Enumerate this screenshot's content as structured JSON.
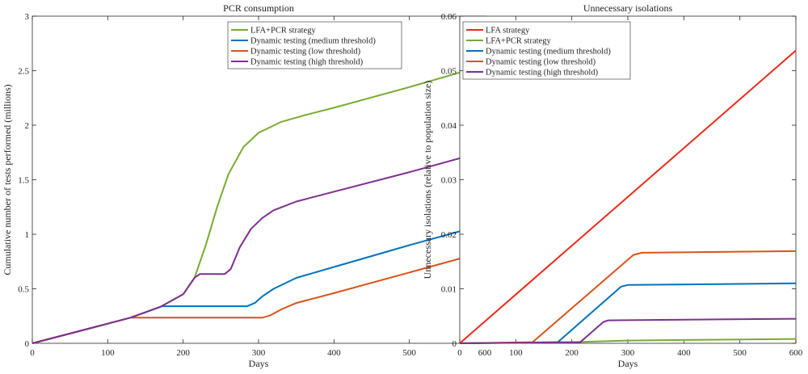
{
  "chart_data": [
    {
      "type": "line",
      "title": "PCR consumption",
      "xlabel": "Days",
      "ylabel": "Cumulative number of tests performed (millions)",
      "xlim": [
        0,
        600
      ],
      "ylim": [
        0,
        3
      ],
      "xticks": [
        0,
        100,
        200,
        300,
        400,
        500,
        600
      ],
      "yticks": [
        0,
        0.5,
        1,
        1.5,
        2,
        2.5,
        3
      ],
      "ytick_labels": [
        "0",
        "0.5",
        "1",
        "1.5",
        "2",
        "2.5",
        "3"
      ],
      "legend_position": "top-right",
      "series": [
        {
          "name": "LFA+PCR strategy",
          "color": "#77ac30",
          "x": [
            0,
            50,
            100,
            130,
            170,
            200,
            215,
            230,
            245,
            260,
            280,
            300,
            330,
            360,
            400,
            500,
            600
          ],
          "y": [
            0,
            0.09,
            0.18,
            0.235,
            0.335,
            0.45,
            0.6,
            0.9,
            1.25,
            1.55,
            1.8,
            1.93,
            2.03,
            2.09,
            2.16,
            2.35,
            2.55
          ]
        },
        {
          "name": "Dynamic testing (medium threshold)",
          "color": "#0072bd",
          "x": [
            0,
            50,
            100,
            130,
            172,
            285,
            295,
            305,
            320,
            350,
            400,
            500,
            600
          ],
          "y": [
            0,
            0.09,
            0.18,
            0.235,
            0.34,
            0.34,
            0.37,
            0.43,
            0.5,
            0.6,
            0.7,
            0.9,
            1.09
          ]
        },
        {
          "name": "Dynamic testing (low threshold)",
          "color": "#d95319",
          "x": [
            0,
            50,
            100,
            130,
            305,
            315,
            330,
            350,
            400,
            500,
            600
          ],
          "y": [
            0,
            0.09,
            0.18,
            0.235,
            0.235,
            0.255,
            0.31,
            0.37,
            0.46,
            0.65,
            0.84
          ]
        },
        {
          "name": "Dynamic testing (high threshold)",
          "color": "#7e2f8e",
          "x": [
            0,
            50,
            100,
            130,
            170,
            200,
            215,
            222,
            255,
            263,
            275,
            290,
            305,
            320,
            350,
            400,
            500,
            600
          ],
          "y": [
            0,
            0.09,
            0.18,
            0.235,
            0.335,
            0.45,
            0.6,
            0.635,
            0.635,
            0.68,
            0.88,
            1.05,
            1.15,
            1.22,
            1.3,
            1.39,
            1.57,
            1.76
          ]
        }
      ]
    },
    {
      "type": "line",
      "title": "Unnecessary isolations",
      "xlabel": "Days",
      "ylabel": "Unnecessary isolations (relative to population size)",
      "xlim": [
        0,
        600
      ],
      "ylim": [
        0,
        0.06
      ],
      "xticks": [
        0,
        100,
        200,
        300,
        400,
        500,
        600
      ],
      "yticks": [
        0,
        0.01,
        0.02,
        0.03,
        0.04,
        0.05,
        0.06
      ],
      "ytick_labels": [
        "0",
        "0.01",
        "0.02",
        "0.03",
        "0.04",
        "0.05",
        "0.06"
      ],
      "legend_position": "top-left",
      "series": [
        {
          "name": "LFA strategy",
          "color": "#ee2a1b",
          "x": [
            0,
            600
          ],
          "y": [
            0,
            0.0537
          ]
        },
        {
          "name": "LFA+PCR strategy",
          "color": "#77ac30",
          "x": [
            0,
            100,
            200,
            300,
            400,
            600
          ],
          "y": [
            0,
            0.0001,
            0.0002,
            0.0005,
            0.0006,
            0.0008
          ]
        },
        {
          "name": "Dynamic testing (medium threshold)",
          "color": "#0072bd",
          "x": [
            0,
            175,
            288,
            300,
            600
          ],
          "y": [
            0,
            0.0002,
            0.0104,
            0.0107,
            0.011
          ]
        },
        {
          "name": "Dynamic testing (low threshold)",
          "color": "#d95319",
          "x": [
            0,
            130,
            310,
            325,
            600
          ],
          "y": [
            0,
            0.0002,
            0.0162,
            0.0166,
            0.0169
          ]
        },
        {
          "name": "Dynamic testing (high threshold)",
          "color": "#7e2f8e",
          "x": [
            0,
            215,
            256,
            265,
            600
          ],
          "y": [
            0,
            0.0002,
            0.0039,
            0.0042,
            0.0045
          ]
        }
      ]
    }
  ]
}
